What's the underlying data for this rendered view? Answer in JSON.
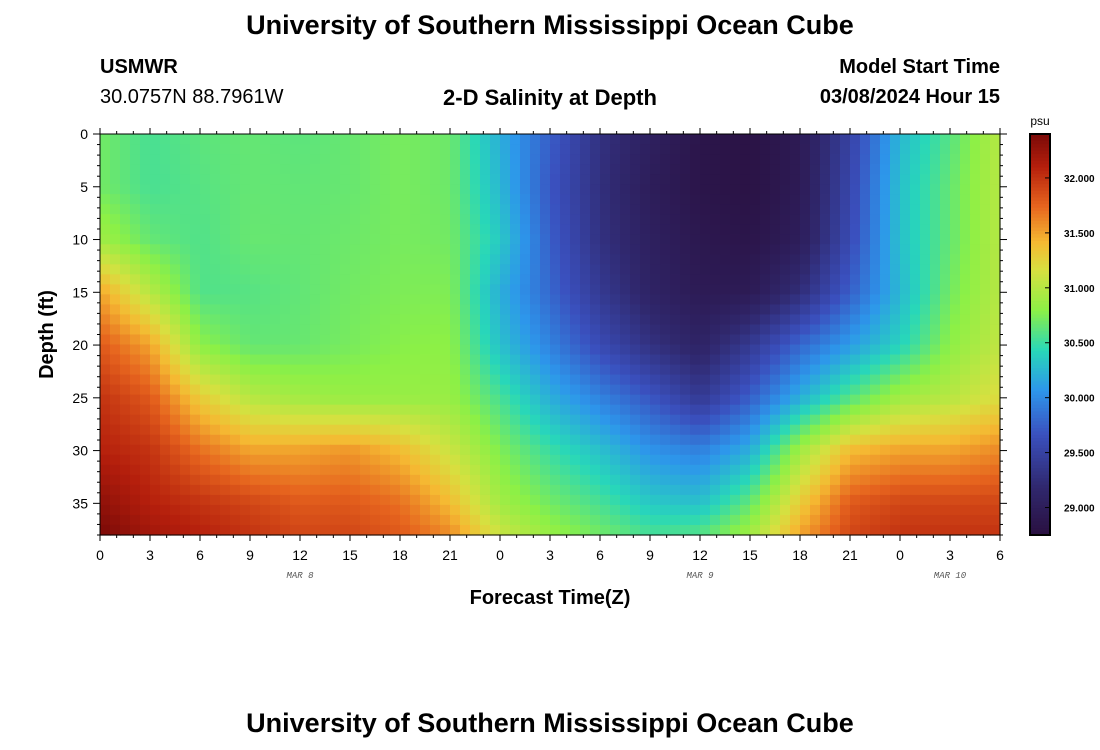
{
  "header": {
    "title": "University of Southern Mississippi Ocean Cube",
    "station": "USMWR",
    "coords": "30.0757N  88.7961W",
    "subtitle": "2-D Salinity at Depth",
    "model_start_label": "Model Start Time",
    "model_start_value": "03/08/2024 Hour 15"
  },
  "footer": {
    "title": "University of Southern Mississippi Ocean Cube"
  },
  "colors": {
    "low": "#2a1040",
    "mid_low": "#3a5fd0",
    "mid": "#30e0a0",
    "mid_high": "#d8e040",
    "high": "#7a0a08"
  },
  "chart_data": {
    "type": "heatmap",
    "title": "2-D Salinity at Depth",
    "xlabel": "Forecast Time(Z)",
    "ylabel": "Depth (ft)",
    "x_ticks": [
      "0",
      "3",
      "6",
      "9",
      "12",
      "15",
      "18",
      "21",
      "0",
      "3",
      "6",
      "9",
      "12",
      "15",
      "18",
      "21",
      "0",
      "3",
      "6"
    ],
    "x_range_hours": [
      0,
      54
    ],
    "date_labels": [
      {
        "text": "MAR 8",
        "at_hour": 12
      },
      {
        "text": "MAR 9",
        "at_hour": 36
      },
      {
        "text": "MAR 10",
        "at_hour": 51
      }
    ],
    "y_ticks": [
      "0",
      "5",
      "10",
      "15",
      "20",
      "25",
      "30",
      "35"
    ],
    "y_range": [
      0,
      38
    ],
    "y_inverted": true,
    "colorbar": {
      "unit": "psu",
      "ticks": [
        "32.000",
        "31.500",
        "31.000",
        "30.500",
        "30.000",
        "29.500",
        "29.000"
      ],
      "range": [
        28.75,
        32.4
      ]
    },
    "grid": false,
    "value_grid": {
      "x_hours": [
        0,
        3,
        6,
        9,
        12,
        15,
        18,
        21,
        24,
        27,
        30,
        33,
        36,
        39,
        42,
        45,
        48,
        51,
        54
      ],
      "depths_ft": [
        0,
        5,
        10,
        15,
        20,
        25,
        30,
        35,
        38
      ],
      "values": [
        [
          30.7,
          30.55,
          30.62,
          30.65,
          30.62,
          30.66,
          30.72,
          30.68,
          30.2,
          29.75,
          29.3,
          29.05,
          28.85,
          28.8,
          28.95,
          29.5,
          30.25,
          30.6,
          31.0
        ],
        [
          30.7,
          30.55,
          30.6,
          30.65,
          30.64,
          30.66,
          30.72,
          30.68,
          30.25,
          29.7,
          29.28,
          29.0,
          28.85,
          28.8,
          28.95,
          29.55,
          30.3,
          30.65,
          31.0
        ],
        [
          30.9,
          30.65,
          30.58,
          30.66,
          30.65,
          30.68,
          30.72,
          30.7,
          30.35,
          29.75,
          29.3,
          29.05,
          28.9,
          28.85,
          29.0,
          29.6,
          30.3,
          30.65,
          31.0
        ],
        [
          31.5,
          31.0,
          30.58,
          30.6,
          30.64,
          30.7,
          30.74,
          30.75,
          30.2,
          29.8,
          29.4,
          29.1,
          28.95,
          28.95,
          29.25,
          29.75,
          30.25,
          30.7,
          31.0
        ],
        [
          31.8,
          31.5,
          30.8,
          30.65,
          30.66,
          30.72,
          30.78,
          30.8,
          30.3,
          29.95,
          29.6,
          29.3,
          29.1,
          29.4,
          29.8,
          30.1,
          30.4,
          30.8,
          31.05
        ],
        [
          32.0,
          31.8,
          31.3,
          31.0,
          30.9,
          30.85,
          30.85,
          30.85,
          30.55,
          30.2,
          29.95,
          29.7,
          29.4,
          29.75,
          30.2,
          30.6,
          30.9,
          31.0,
          31.2
        ],
        [
          32.1,
          32.0,
          31.7,
          31.5,
          31.5,
          31.55,
          31.4,
          31.1,
          30.75,
          30.5,
          30.3,
          30.05,
          29.95,
          30.2,
          30.9,
          31.4,
          31.5,
          31.5,
          31.6
        ],
        [
          32.3,
          32.1,
          32.0,
          31.9,
          31.8,
          31.8,
          31.7,
          31.4,
          30.9,
          30.7,
          30.55,
          30.35,
          30.3,
          30.65,
          31.3,
          31.8,
          31.9,
          31.9,
          31.9
        ],
        [
          32.4,
          32.2,
          32.1,
          32.0,
          31.9,
          31.9,
          31.8,
          31.6,
          31.1,
          30.85,
          30.7,
          30.55,
          30.6,
          30.9,
          31.5,
          31.9,
          32.0,
          32.0,
          32.0
        ]
      ]
    }
  }
}
